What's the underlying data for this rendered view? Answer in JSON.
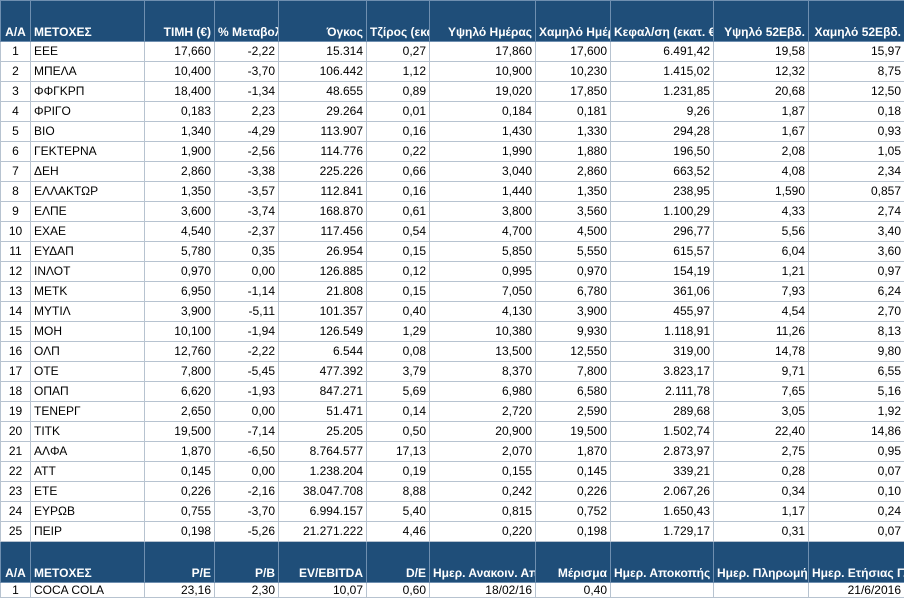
{
  "header": [
    "Α/Α",
    "ΜΕΤΟΧΕΣ",
    "ΤΙΜΗ (€)",
    "% Μεταβολή",
    "Όγκος",
    "Τζίρος (εκατ. €)",
    "Υψηλό Ημέρας",
    "Χαμηλό Ημέρας",
    "Κεφαλ/ση (εκατ. €)",
    "Υψηλό 52Εβδ.",
    "Χαμηλό 52Εβδ."
  ],
  "rows": [
    [
      "1",
      "ΕΕΕ",
      "17,660",
      "-2,22",
      "15.314",
      "0,27",
      "17,860",
      "17,600",
      "6.491,42",
      "19,58",
      "15,97"
    ],
    [
      "2",
      "ΜΠΕΛΑ",
      "10,400",
      "-3,70",
      "106.442",
      "1,12",
      "10,900",
      "10,230",
      "1.415,02",
      "12,32",
      "8,75"
    ],
    [
      "3",
      "ΦΦΓΚΡΠ",
      "18,400",
      "-1,34",
      "48.655",
      "0,89",
      "19,020",
      "17,850",
      "1.231,85",
      "20,68",
      "12,50"
    ],
    [
      "4",
      "ΦΡΙΓΟ",
      "0,183",
      "2,23",
      "29.264",
      "0,01",
      "0,184",
      "0,181",
      "9,26",
      "1,87",
      "0,18"
    ],
    [
      "5",
      "ΒΙΟ",
      "1,340",
      "-4,29",
      "113.907",
      "0,16",
      "1,430",
      "1,330",
      "294,28",
      "1,67",
      "0,93"
    ],
    [
      "6",
      "ΓΕΚΤΕΡΝΑ",
      "1,900",
      "-2,56",
      "114.776",
      "0,22",
      "1,990",
      "1,880",
      "196,50",
      "2,08",
      "1,05"
    ],
    [
      "7",
      "ΔΕΗ",
      "2,860",
      "-3,38",
      "225.226",
      "0,66",
      "3,040",
      "2,860",
      "663,52",
      "4,08",
      "2,34"
    ],
    [
      "8",
      "ΕΛΛΑΚΤΩΡ",
      "1,350",
      "-3,57",
      "112.841",
      "0,16",
      "1,440",
      "1,350",
      "238,95",
      "1,590",
      "0,857"
    ],
    [
      "9",
      "ΕΛΠΕ",
      "3,600",
      "-3,74",
      "168.870",
      "0,61",
      "3,800",
      "3,560",
      "1.100,29",
      "4,33",
      "2,74"
    ],
    [
      "10",
      "ΕΧΑΕ",
      "4,540",
      "-2,37",
      "117.456",
      "0,54",
      "4,700",
      "4,500",
      "296,77",
      "5,56",
      "3,40"
    ],
    [
      "11",
      "ΕΥΔΑΠ",
      "5,780",
      "0,35",
      "26.954",
      "0,15",
      "5,850",
      "5,550",
      "615,57",
      "6,04",
      "3,60"
    ],
    [
      "12",
      "ΙΝΛΟΤ",
      "0,970",
      "0,00",
      "126.885",
      "0,12",
      "0,995",
      "0,970",
      "154,19",
      "1,21",
      "0,97"
    ],
    [
      "13",
      "ΜΕΤΚ",
      "6,950",
      "-1,14",
      "21.808",
      "0,15",
      "7,050",
      "6,780",
      "361,06",
      "7,93",
      "6,24"
    ],
    [
      "14",
      "ΜΥΤΙΛ",
      "3,900",
      "-5,11",
      "101.357",
      "0,40",
      "4,130",
      "3,900",
      "455,97",
      "4,54",
      "2,70"
    ],
    [
      "15",
      "ΜΟΗ",
      "10,100",
      "-1,94",
      "126.549",
      "1,29",
      "10,380",
      "9,930",
      "1.118,91",
      "11,26",
      "8,13"
    ],
    [
      "16",
      "ΟΛΠ",
      "12,760",
      "-2,22",
      "6.544",
      "0,08",
      "13,500",
      "12,550",
      "319,00",
      "14,78",
      "9,80"
    ],
    [
      "17",
      "ΟΤΕ",
      "7,800",
      "-5,45",
      "477.392",
      "3,79",
      "8,370",
      "7,800",
      "3.823,17",
      "9,71",
      "6,55"
    ],
    [
      "18",
      "ΟΠΑΠ",
      "6,620",
      "-1,93",
      "847.271",
      "5,69",
      "6,980",
      "6,580",
      "2.111,78",
      "7,65",
      "5,16"
    ],
    [
      "19",
      "ΤΕΝΕΡΓ",
      "2,650",
      "0,00",
      "51.471",
      "0,14",
      "2,720",
      "2,590",
      "289,68",
      "3,05",
      "1,92"
    ],
    [
      "20",
      "ΤΙΤΚ",
      "19,500",
      "-7,14",
      "25.205",
      "0,50",
      "20,900",
      "19,500",
      "1.502,74",
      "22,40",
      "14,86"
    ],
    [
      "21",
      "ΑΛΦΑ",
      "1,870",
      "-6,50",
      "8.764.577",
      "17,13",
      "2,070",
      "1,870",
      "2.873,97",
      "2,75",
      "0,95"
    ],
    [
      "22",
      "ΑΤΤ",
      "0,145",
      "0,00",
      "1.238.204",
      "0,19",
      "0,155",
      "0,145",
      "339,21",
      "0,28",
      "0,07"
    ],
    [
      "23",
      "ΕΤΕ",
      "0,226",
      "-2,16",
      "38.047.708",
      "8,88",
      "0,242",
      "0,226",
      "2.067,26",
      "0,34",
      "0,10"
    ],
    [
      "24",
      "ΕΥΡΩΒ",
      "0,755",
      "-3,70",
      "6.994.157",
      "5,40",
      "0,815",
      "0,752",
      "1.650,43",
      "1,17",
      "0,24"
    ],
    [
      "25",
      "ΠΕΙΡ",
      "0,198",
      "-5,26",
      "21.271.222",
      "4,46",
      "0,220",
      "0,198",
      "1.729,17",
      "0,31",
      "0,07"
    ]
  ],
  "header2": [
    "Α/Α",
    "ΜΕΤΟΧΕΣ",
    "P/E",
    "P/B",
    "EV/EBITDA",
    "D/E",
    "Ημερ. Ανακοιν. Αποτελεσμ.",
    "Μέρισμα",
    "Ημερ. Αποκοπής",
    "Ημερ. Πληρωμής",
    "Ημερ. Ετήσιας Γ.Σ."
  ],
  "tail_row": [
    "1",
    "COCA COLA",
    "23,16",
    "2,30",
    "10,07",
    "0,60",
    "18/02/16",
    "0,40",
    "",
    "",
    "21/6/2016"
  ]
}
